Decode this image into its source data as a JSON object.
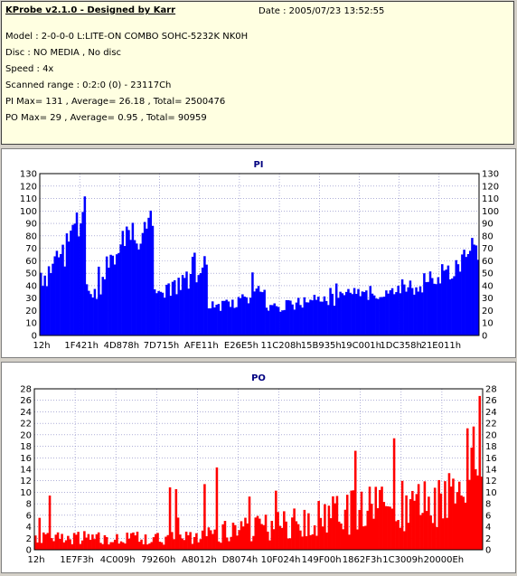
{
  "header": {
    "title": "KProbe v2.1.0 - Designed by Karr",
    "date": "Date : 2005/07/23 13:52:55",
    "model": "Model : 2-0-0-0 L:LITE-ON COMBO SOHC-5232K NK0H",
    "disc": "Disc : NO MEDIA , No disc",
    "speed": "Speed : 4x",
    "range": "Scanned range : 0:2:0 (0) - 23117Ch",
    "pi_summary": "PI Max= 131 , Average= 26.18 , Total= 2500476",
    "po_summary": "PO Max= 29 , Average= 0.95 , Total= 90959"
  },
  "chart_data": [
    {
      "type": "bar",
      "title": "PI",
      "color": "#0000ff",
      "ylim": [
        0,
        130
      ],
      "yticks": [
        0,
        10,
        20,
        30,
        40,
        50,
        60,
        70,
        80,
        90,
        100,
        110,
        120,
        130
      ],
      "xtick_labels": [
        "12h",
        "1F421h",
        "4D878h",
        "7D715h",
        "AFE11h",
        "E26E5h",
        "11C208h",
        "15B935h",
        "19C001h",
        "1DC358h",
        "21E011h"
      ],
      "grid": true,
      "profile": [
        [
          0,
          50
        ],
        [
          3,
          52
        ],
        [
          6,
          58
        ],
        [
          9,
          68
        ],
        [
          12,
          76
        ],
        [
          15,
          92
        ],
        [
          16,
          116
        ],
        [
          17,
          107
        ],
        [
          18,
          110
        ],
        [
          19,
          99
        ],
        [
          20,
          105
        ],
        [
          21,
          115
        ],
        [
          22,
          108
        ],
        [
          23,
          40
        ],
        [
          25,
          37
        ],
        [
          28,
          37
        ],
        [
          30,
          42
        ],
        [
          32,
          60
        ],
        [
          35,
          66
        ],
        [
          38,
          72
        ],
        [
          41,
          80
        ],
        [
          44,
          86
        ],
        [
          47,
          92
        ],
        [
          50,
          97
        ],
        [
          53,
          102
        ],
        [
          55,
          111
        ],
        [
          56,
          111
        ],
        [
          57,
          36
        ],
        [
          60,
          38
        ],
        [
          64,
          40
        ],
        [
          68,
          44
        ],
        [
          72,
          48
        ],
        [
          76,
          52
        ],
        [
          80,
          56
        ],
        [
          82,
          64
        ],
        [
          83,
          60
        ],
        [
          84,
          26
        ],
        [
          90,
          27
        ],
        [
          96,
          30
        ],
        [
          102,
          33
        ],
        [
          108,
          36
        ],
        [
          110,
          42
        ],
        [
          112,
          44
        ],
        [
          113,
          24
        ],
        [
          120,
          26
        ],
        [
          126,
          28
        ],
        [
          132,
          30
        ],
        [
          138,
          31
        ],
        [
          144,
          32
        ],
        [
          150,
          34
        ],
        [
          156,
          36
        ],
        [
          162,
          38
        ],
        [
          168,
          40
        ],
        [
          174,
          42
        ],
        [
          180,
          43
        ],
        [
          186,
          45
        ],
        [
          192,
          48
        ],
        [
          198,
          52
        ],
        [
          204,
          58
        ],
        [
          210,
          66
        ],
        [
          215,
          72
        ],
        [
          218,
          80
        ],
        [
          220,
          82
        ]
      ]
    },
    {
      "type": "bar",
      "title": "PO",
      "color": "#ff0000",
      "ylim": [
        0,
        28
      ],
      "yticks": [
        0,
        2,
        4,
        6,
        8,
        10,
        12,
        14,
        16,
        18,
        20,
        22,
        24,
        26,
        28
      ],
      "xtick_labels": [
        "12h",
        "1E7F3h",
        "4C009h",
        "79260h",
        "A8012h",
        "D8074h",
        "10F024h",
        "149F00h",
        "1862F3h",
        "1C3009h",
        "20000Eh"
      ],
      "grid": true,
      "profile": [
        [
          0,
          2
        ],
        [
          10,
          2.2
        ],
        [
          20,
          2.4
        ],
        [
          30,
          2.2
        ],
        [
          40,
          2.0
        ],
        [
          50,
          2.2
        ],
        [
          60,
          2.4
        ],
        [
          70,
          2.6
        ],
        [
          80,
          3
        ],
        [
          90,
          3.4
        ],
        [
          100,
          3.8
        ],
        [
          110,
          4.2
        ],
        [
          120,
          4.8
        ],
        [
          130,
          5.4
        ],
        [
          140,
          6
        ],
        [
          150,
          6.8
        ],
        [
          160,
          7.4
        ],
        [
          170,
          8
        ],
        [
          180,
          8.6
        ],
        [
          190,
          9.6
        ],
        [
          200,
          10.4
        ],
        [
          205,
          12
        ],
        [
          210,
          14
        ],
        [
          214,
          18
        ],
        [
          217,
          22
        ],
        [
          220,
          26
        ]
      ]
    }
  ]
}
